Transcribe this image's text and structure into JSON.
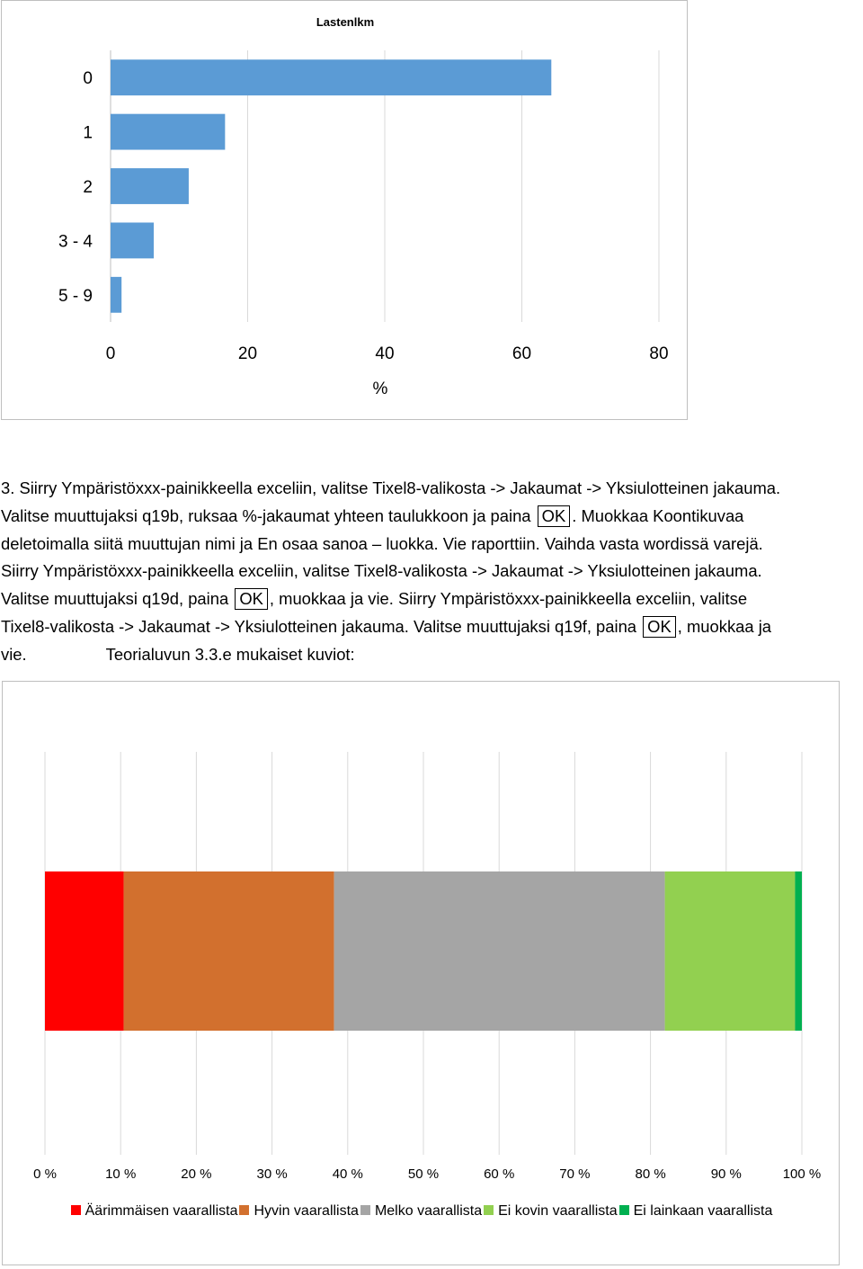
{
  "chart_data": [
    {
      "type": "bar",
      "orientation": "horizontal",
      "title": "Lastenlkm",
      "categories": [
        "0",
        "1",
        "2",
        "3 - 4",
        "5 - 9"
      ],
      "values": [
        64.3,
        16.7,
        11.4,
        6.3,
        1.6
      ],
      "xlabel": "%",
      "ylabel": "",
      "xlim": [
        0,
        80
      ],
      "xticks": [
        "0",
        "20",
        "40",
        "60",
        "80"
      ],
      "grid": true,
      "colors": [
        "#5b9bd5"
      ]
    },
    {
      "type": "bar",
      "orientation": "horizontal",
      "stacked": "percent",
      "title": "",
      "xlim": [
        0,
        100
      ],
      "xticks": [
        "0 %",
        "10 %",
        "20 %",
        "30 %",
        "40 %",
        "50 %",
        "60 %",
        "70 %",
        "80 %",
        "90 %",
        "100 %"
      ],
      "grid": true,
      "legend_position": "bottom",
      "series": [
        {
          "name": "Äärimmäisen vaarallista",
          "values": [
            10.4
          ],
          "color": "#ff0000"
        },
        {
          "name": "Hyvin vaarallista",
          "values": [
            27.8
          ],
          "color": "#d2702e"
        },
        {
          "name": "Melko vaarallista",
          "values": [
            43.7
          ],
          "color": "#a5a5a5"
        },
        {
          "name": "Ei kovin vaarallista",
          "values": [
            17.2
          ],
          "color": "#92d050"
        },
        {
          "name": "Ei lainkaan vaarallista",
          "values": [
            0.9
          ],
          "color": "#00b050"
        }
      ]
    }
  ],
  "document": {
    "l1": "3. Siirry Ympäristöxxx-painikkeella exceliin, valitse Tixel8-valikosta -> Jakaumat -> Yksiulotteinen jakauma.",
    "l2a": "Valitse muuttujaksi q19b, ruksaa %-jakaumat yhteen taulukkoon ja paina",
    "ok1": "OK",
    "l2b": ". Muokkaa Koontikuvaa",
    "l3": "deletoimalla siitä muuttujan nimi ja En osaa sanoa – luokka. Vie raporttiin. Vaihda vasta wordissä varejä.",
    "l4": "Siirry Ympäristöxxx-painikkeella exceliin, valitse Tixel8-valikosta -> Jakaumat -> Yksiulotteinen jakauma.",
    "l5a": "Valitse muuttujaksi q19d,  paina",
    "ok2": "OK",
    "l5b": ", muokkaa ja vie. Siirry Ympäristöxxx-painikkeella exceliin, valitse",
    "l6a": "Tixel8-valikosta -> Jakaumat -> Yksiulotteinen jakauma.  Valitse muuttujaksi q19f, paina",
    "ok3": "OK",
    "l6b": ", muokkaa ja",
    "l7a": "vie.",
    "l7b": "Teorialuvun 3.3.e mukaiset kuviot:"
  }
}
